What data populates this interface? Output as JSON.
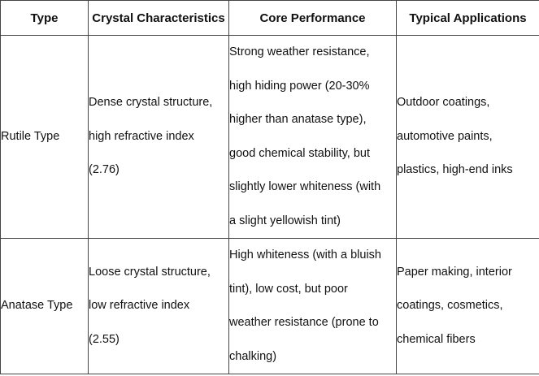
{
  "table": {
    "header": [
      "Type",
      "Crystal Characteristics",
      "Core Performance",
      "Typical Applications"
    ],
    "rows": [
      [
        [
          "Rutile Type"
        ],
        [
          "Dense crystal structure,",
          "high refractive index",
          "(2.76)"
        ],
        [
          "Strong weather resistance,",
          "high hiding power (20-30%",
          "higher than anatase type),",
          "good chemical stability, but",
          "slightly lower whiteness (with",
          "a slight yellowish tint)"
        ],
        [
          "Outdoor coatings,",
          "automotive paints,",
          "plastics, high-end inks"
        ]
      ],
      [
        [
          "Anatase Type"
        ],
        [
          "Loose crystal structure,",
          "low refractive index",
          "(2.55)"
        ],
        [
          "High whiteness (with a bluish",
          "tint), low cost, but poor",
          "weather resistance (prone to",
          "chalking)"
        ],
        [
          "Paper making, interior",
          "coatings, cosmetics,",
          "chemical fibers"
        ]
      ]
    ]
  }
}
